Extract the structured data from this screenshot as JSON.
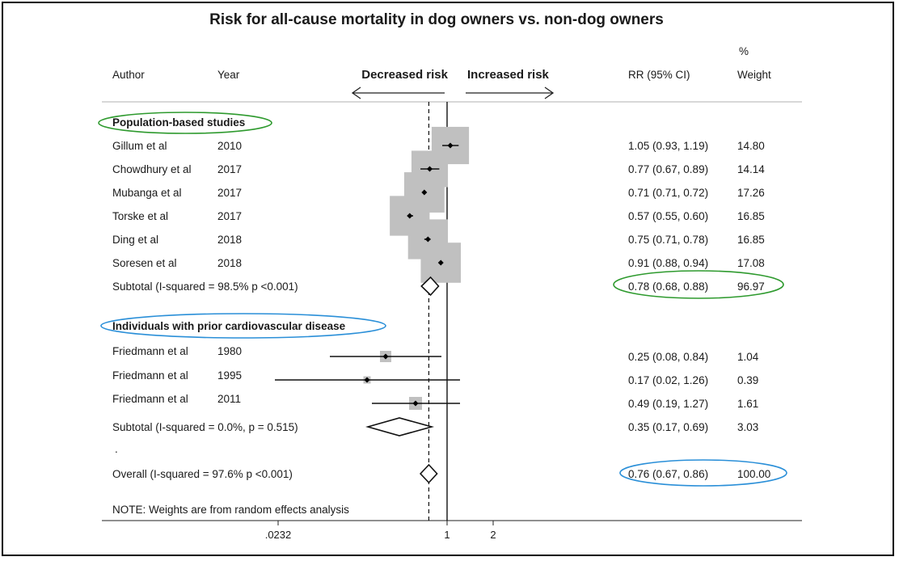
{
  "chart_data": {
    "type": "forest",
    "title": "Risk for all-cause mortality in dog owners  vs. non-dog owners",
    "headers": {
      "author": "Author",
      "year": "Year",
      "rr": "RR (95% CI)",
      "weight_top": "%",
      "weight": "Weight"
    },
    "direction": {
      "left": "Decreased risk",
      "right": "Increased risk"
    },
    "x_scale": "log",
    "x_ticks": [
      {
        "value": 0.0232,
        "label": ".0232"
      },
      {
        "value": 1,
        "label": "1"
      },
      {
        "value": 2,
        "label": "2"
      }
    ],
    "null_line": 1,
    "overall_line": 0.76,
    "sections": [
      {
        "label": "Population-based studies",
        "highlight_color": "#2e9a2e",
        "studies": [
          {
            "author": "Gillum et al",
            "year": "2010",
            "rr": 1.05,
            "lo": 0.93,
            "hi": 1.19,
            "ci_text": "1.05 (0.93, 1.19)",
            "weight": "14.80"
          },
          {
            "author": "Chowdhury et al",
            "year": "2017",
            "rr": 0.77,
            "lo": 0.67,
            "hi": 0.89,
            "ci_text": "0.77 (0.67, 0.89)",
            "weight": "14.14"
          },
          {
            "author": "Mubanga et al",
            "year": "2017",
            "rr": 0.71,
            "lo": 0.71,
            "hi": 0.72,
            "ci_text": "0.71 (0.71, 0.72)",
            "weight": "17.26"
          },
          {
            "author": "Torske et al",
            "year": "2017",
            "rr": 0.57,
            "lo": 0.55,
            "hi": 0.6,
            "ci_text": "0.57 (0.55, 0.60)",
            "weight": "16.85"
          },
          {
            "author": "Ding et al",
            "year": "2018",
            "rr": 0.75,
            "lo": 0.71,
            "hi": 0.78,
            "ci_text": "0.75 (0.71, 0.78)",
            "weight": "16.85"
          },
          {
            "author": "Soresen et al",
            "year": "2018",
            "rr": 0.91,
            "lo": 0.88,
            "hi": 0.94,
            "ci_text": "0.91 (0.88, 0.94)",
            "weight": "17.08"
          }
        ],
        "subtotal": {
          "label": "Subtotal  (I-squared = 98.5%  p <0.001)",
          "rr": 0.78,
          "lo": 0.68,
          "hi": 0.88,
          "ci_text": "0.78 (0.68, 0.88)",
          "weight": "96.97",
          "highlight_color": "#2e9a2e"
        }
      },
      {
        "label": "Individuals with prior cardiovascular disease",
        "highlight_color": "#2a8fd8",
        "studies": [
          {
            "author": "Friedmann et al",
            "year": "1980",
            "rr": 0.25,
            "lo": 0.08,
            "hi": 0.84,
            "ci_text": "0.25 (0.08, 0.84)",
            "weight": "1.04"
          },
          {
            "author": "Friedmann et al",
            "year": "1995",
            "rr": 0.17,
            "lo": 0.02,
            "hi": 1.26,
            "ci_text": "0.17 (0.02, 1.26)",
            "weight": "0.39"
          },
          {
            "author": "Friedmann et al",
            "year": "2011",
            "rr": 0.49,
            "lo": 0.19,
            "hi": 1.27,
            "ci_text": "0.49 (0.19, 1.27)",
            "weight": "1.61"
          }
        ],
        "subtotal": {
          "label": "Subtotal  (I-squared = 0.0%, p = 0.515)",
          "rr": 0.35,
          "lo": 0.17,
          "hi": 0.69,
          "ci_text": "0.35 (0.17, 0.69)",
          "weight": "3.03"
        }
      }
    ],
    "overall": {
      "label": "Overall  (I-squared = 97.6%  p <0.001)",
      "rr": 0.76,
      "lo": 0.67,
      "hi": 0.86,
      "ci_text": "0.76 (0.67, 0.86)",
      "weight": "100.00",
      "highlight_color": "#2a8fd8"
    },
    "separator_mark": ".",
    "note": "NOTE: Weights are from random effects analysis"
  }
}
